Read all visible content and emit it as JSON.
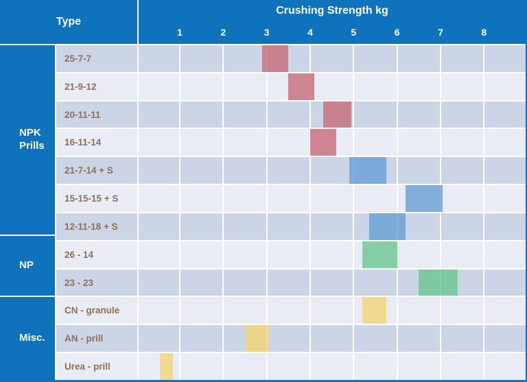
{
  "header": {
    "type_label": "Type"
  },
  "chart_data": {
    "type": "bar",
    "subtype": "horizontal-floating-range-bars",
    "title": "Crushing Strength kg",
    "x_axis": {
      "title": "Crushing Strength kg",
      "unit": "kg",
      "min": 0,
      "max": 8.9,
      "ticks": [
        1,
        2,
        3,
        4,
        5,
        6,
        7,
        8
      ],
      "grid": true
    },
    "y_axis_title": "Type",
    "groups": [
      {
        "label": "NPK Prills",
        "row_count": 7
      },
      {
        "label": "NP",
        "row_count": 2
      },
      {
        "label": "Misc.",
        "row_count": 3
      }
    ],
    "rows": [
      {
        "group": "NPK Prills",
        "label": "25-7-7",
        "range_kg": [
          2.9,
          3.5
        ],
        "color": "rose"
      },
      {
        "group": "NPK Prills",
        "label": "21-9-12",
        "range_kg": [
          3.5,
          4.1
        ],
        "color": "rose"
      },
      {
        "group": "NPK Prills",
        "label": "20-11-11",
        "range_kg": [
          4.3,
          4.95
        ],
        "color": "rose"
      },
      {
        "group": "NPK Prills",
        "label": "16-11-14",
        "range_kg": [
          4.0,
          4.6
        ],
        "color": "rose"
      },
      {
        "group": "NPK Prills",
        "label": "21-7-14 + S",
        "range_kg": [
          4.9,
          5.75
        ],
        "color": "blue"
      },
      {
        "group": "NPK Prills",
        "label": "15-15-15 + S",
        "range_kg": [
          6.2,
          7.05
        ],
        "color": "blue"
      },
      {
        "group": "NPK Prills",
        "label": "12-11-18 + S",
        "range_kg": [
          5.35,
          6.2
        ],
        "color": "blue"
      },
      {
        "group": "NP",
        "label": "26 - 14",
        "range_kg": [
          5.2,
          6.0
        ],
        "color": "green"
      },
      {
        "group": "NP",
        "label": "23 - 23",
        "range_kg": [
          6.5,
          7.4
        ],
        "color": "green"
      },
      {
        "group": "Misc.",
        "label": "CN - granule",
        "range_kg": [
          5.2,
          5.75
        ],
        "color": "yellow"
      },
      {
        "group": "Misc.",
        "label": "AN - prill",
        "range_kg": [
          2.5,
          3.05
        ],
        "color": "yellow"
      },
      {
        "group": "Misc.",
        "label": "Urea - prill",
        "range_kg": [
          0.55,
          0.85
        ],
        "color": "yellow"
      }
    ]
  },
  "colors": {
    "header_blue": "#0e72bd",
    "row_bg_dark": "#cbd5e6",
    "row_bg_light": "#e9ecf5",
    "row_label_text": "#8b7155",
    "gridline_white": "#ffffff",
    "bars": {
      "rose": "rgba(199,107,120,0.8)",
      "blue": "rgba(102,159,212,0.8)",
      "green": "rgba(108,197,145,0.8)",
      "yellow": "rgba(242,213,119,0.8)"
    }
  }
}
